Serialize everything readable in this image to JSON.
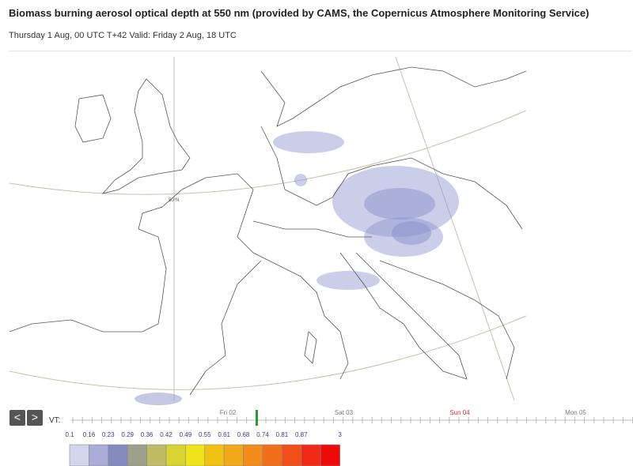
{
  "header": {
    "title": "Biomass burning aerosol optical depth at 550 nm (provided by CAMS, the Copernicus Atmosphere Monitoring Service)",
    "subtitle": "Thursday 1 Aug, 00 UTC T+42 Valid: Friday 2 Aug, 18 UTC"
  },
  "map": {
    "graticule_label": "50°N"
  },
  "nav": {
    "prev": "<",
    "next": ">"
  },
  "timeline": {
    "label": "VT:",
    "days": [
      {
        "label": "Fri 02",
        "color": "#777777"
      },
      {
        "label": "Sat 03",
        "color": "#777777"
      },
      {
        "label": "Sun 04",
        "color": "#e03030"
      },
      {
        "label": "Mon 05",
        "color": "#777777"
      }
    ]
  },
  "legend": {
    "labels": [
      "0.1",
      "0.16",
      "0.23",
      "0.29",
      "0.36",
      "0.42",
      "0.49",
      "0.55",
      "0.61",
      "0.68",
      "0.74",
      "0.81",
      "0.87",
      "3"
    ],
    "colors": [
      "#d2d5eb",
      "#a9add8",
      "#8489be",
      "#9da08a",
      "#bfbc66",
      "#d8d232",
      "#efe41a",
      "#f2c212",
      "#f2a818",
      "#f38c1c",
      "#f26e1a",
      "#f14e18",
      "#f02a16",
      "#ef0a0a"
    ]
  }
}
